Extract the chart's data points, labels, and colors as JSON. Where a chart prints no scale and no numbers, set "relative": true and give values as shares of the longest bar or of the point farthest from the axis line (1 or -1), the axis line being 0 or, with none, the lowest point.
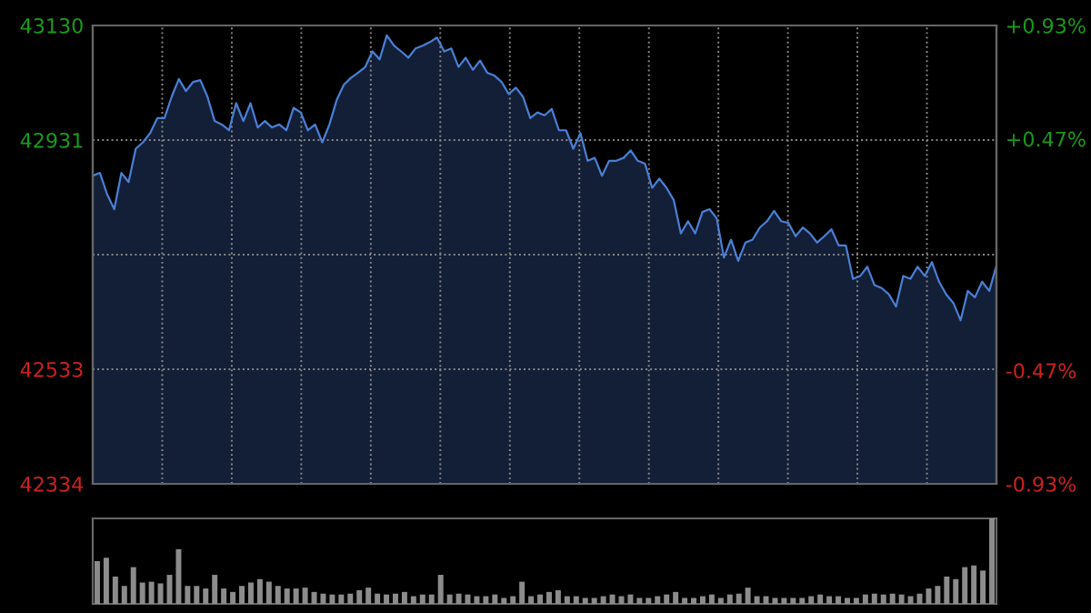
{
  "chart_data": [
    {
      "type": "area",
      "categories": [
        null,
        null,
        null,
        null,
        null,
        null,
        null,
        null,
        null,
        null,
        null,
        null,
        null,
        null,
        null,
        null,
        null,
        null,
        null,
        null,
        null,
        null,
        null,
        null,
        null,
        null,
        null,
        null,
        null,
        null,
        null,
        null,
        null,
        null,
        null,
        null,
        null,
        null,
        null,
        null,
        null,
        null,
        null,
        null,
        null,
        null,
        null,
        null,
        null,
        null,
        null,
        null,
        null,
        null,
        null,
        null,
        null,
        null,
        null,
        null,
        null,
        null,
        null,
        null,
        null,
        null,
        null,
        null,
        null,
        null,
        null,
        null,
        null,
        null,
        null,
        null,
        null,
        null,
        null,
        null,
        null,
        null,
        null,
        null,
        null,
        null,
        null,
        null,
        null,
        null,
        null,
        null,
        null,
        null,
        null,
        null,
        null,
        null,
        null,
        null,
        null,
        null,
        null,
        null,
        null,
        null,
        null,
        null,
        null,
        null,
        null,
        null,
        null,
        null,
        null,
        null,
        null,
        null,
        null,
        null,
        null,
        null,
        null,
        null,
        null,
        null,
        null
      ],
      "series": [
        {
          "color": "#4a7fd4",
          "values": [
            42869,
            42874,
            42837,
            42811,
            42874,
            42858,
            42916,
            42927,
            42943,
            42969,
            42969,
            43006,
            43037,
            43016,
            43032,
            43035,
            43006,
            42964,
            42958,
            42948,
            42995,
            42964,
            42995,
            42953,
            42964,
            42953,
            42958,
            42948,
            42987,
            42979,
            42948,
            42958,
            42927,
            42958,
            43000,
            43027,
            43039,
            43048,
            43058,
            43085,
            43071,
            43113,
            43095,
            43085,
            43074,
            43090,
            43095,
            43101,
            43109,
            43085,
            43090,
            43058,
            43074,
            43053,
            43069,
            43048,
            43043,
            43032,
            43011,
            43022,
            43006,
            42969,
            42979,
            42974,
            42985,
            42948,
            42948,
            42916,
            42943,
            42895,
            42900,
            42869,
            42895,
            42895,
            42900,
            42913,
            42895,
            42890,
            42848,
            42864,
            42848,
            42827,
            42769,
            42790,
            42769,
            42806,
            42811,
            42795,
            42727,
            42758,
            42721,
            42753,
            42758,
            42779,
            42790,
            42808,
            42790,
            42787,
            42764,
            42779,
            42769,
            42753,
            42764,
            42776,
            42748,
            42748,
            42690,
            42695,
            42711,
            42679,
            42674,
            42663,
            42642,
            42695,
            42690,
            42711,
            42695,
            42719,
            42685,
            42663,
            42648,
            42618,
            42669,
            42658,
            42685,
            42669,
            42713
          ]
        }
      ],
      "ylim": [
        42334,
        43130
      ],
      "yticks": [
        42334,
        42533,
        {
          "value": 42732,
          "label": null
        },
        42931,
        43130
      ],
      "y2lim": [
        -0.93,
        0.93
      ],
      "y2ticks": [
        {
          "value": -0.93,
          "label": "-0.93%"
        },
        {
          "value": -0.47,
          "label": "-0.47%"
        },
        {
          "value": 0,
          "label": null
        },
        {
          "value": 0.47,
          "label": "+0.47%"
        },
        {
          "value": 0.93,
          "label": "+0.93%"
        }
      ],
      "grid": true,
      "legend": false,
      "marker": "none",
      "line_style": "solid"
    },
    {
      "type": "bar",
      "relative": true,
      "categories": [
        null,
        null,
        null,
        null,
        null,
        null,
        null,
        null,
        null,
        null,
        null,
        null,
        null,
        null,
        null,
        null,
        null,
        null,
        null,
        null,
        null,
        null,
        null,
        null,
        null,
        null,
        null,
        null,
        null,
        null,
        null,
        null,
        null,
        null,
        null,
        null,
        null,
        null,
        null,
        null,
        null,
        null,
        null,
        null,
        null,
        null,
        null,
        null,
        null,
        null,
        null,
        null,
        null,
        null,
        null,
        null,
        null,
        null,
        null,
        null,
        null,
        null,
        null,
        null,
        null,
        null,
        null,
        null,
        null,
        null,
        null,
        null,
        null,
        null,
        null,
        null,
        null,
        null,
        null,
        null,
        null,
        null,
        null,
        null,
        null,
        null,
        null,
        null,
        null,
        null,
        null,
        null,
        null,
        null,
        null,
        null,
        null,
        null,
        null,
        null
      ],
      "series": [
        {
          "color": "#8c8c8c",
          "values": [
            0.5,
            0.54,
            0.32,
            0.21,
            0.43,
            0.25,
            0.26,
            0.24,
            0.34,
            0.64,
            0.21,
            0.21,
            0.18,
            0.34,
            0.18,
            0.14,
            0.21,
            0.25,
            0.29,
            0.26,
            0.21,
            0.18,
            0.18,
            0.19,
            0.14,
            0.12,
            0.11,
            0.11,
            0.12,
            0.16,
            0.19,
            0.12,
            0.11,
            0.12,
            0.14,
            0.09,
            0.11,
            0.11,
            0.34,
            0.11,
            0.12,
            0.11,
            0.09,
            0.09,
            0.11,
            0.07,
            0.09,
            0.26,
            0.09,
            0.11,
            0.14,
            0.16,
            0.09,
            0.09,
            0.07,
            0.07,
            0.09,
            0.11,
            0.09,
            0.11,
            0.07,
            0.07,
            0.09,
            0.11,
            0.14,
            0.07,
            0.07,
            0.09,
            0.11,
            0.07,
            0.11,
            0.12,
            0.19,
            0.09,
            0.09,
            0.07,
            0.07,
            0.07,
            0.07,
            0.09,
            0.11,
            0.09,
            0.09,
            0.07,
            0.07,
            0.11,
            0.12,
            0.11,
            0.12,
            0.11,
            0.09,
            0.12,
            0.18,
            0.21,
            0.32,
            0.29,
            0.43,
            0.45,
            0.39,
            1
          ]
        }
      ],
      "grid": false,
      "legend": false
    }
  ]
}
